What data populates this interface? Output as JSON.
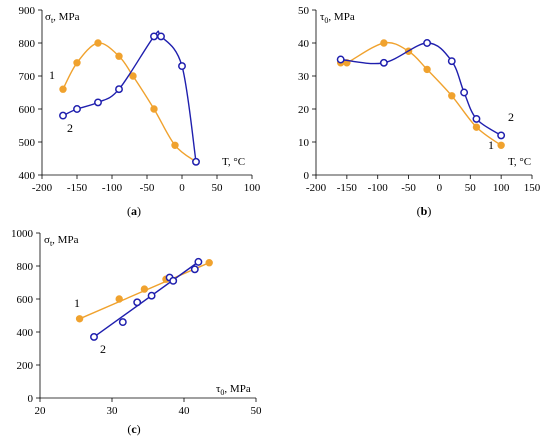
{
  "colors": {
    "series1": "#F0A22E",
    "series2": "#1F1FAE"
  },
  "chart_data": [
    {
      "type": "scatter",
      "panel": "a",
      "panel_label": "(a)",
      "ylabel_main": "σ",
      "ylabel_sub": "t",
      "ylabel_unit": ", MPa",
      "xlabel": "T, °C",
      "xlim": [
        -200,
        100
      ],
      "ylim": [
        400,
        900
      ],
      "xticks": [
        -200,
        -150,
        -100,
        -50,
        0,
        50,
        100
      ],
      "yticks": [
        400,
        500,
        600,
        700,
        800,
        900
      ],
      "series": [
        {
          "name": "1",
          "marker": "filled",
          "x": [
            -170,
            -150,
            -120,
            -90,
            -70,
            -40,
            -10,
            20
          ],
          "y": [
            660,
            740,
            800,
            760,
            700,
            600,
            490,
            440
          ]
        },
        {
          "name": "2",
          "marker": "open",
          "x": [
            -170,
            -150,
            -120,
            -90,
            -40,
            -30,
            0,
            20
          ],
          "y": [
            580,
            600,
            620,
            660,
            820,
            820,
            730,
            440
          ]
        }
      ]
    },
    {
      "type": "scatter",
      "panel": "b",
      "panel_label": "(b)",
      "ylabel_main": "τ",
      "ylabel_sub": "0",
      "ylabel_unit": ", MPa",
      "xlabel": "T, °C",
      "xlim": [
        -200,
        150
      ],
      "ylim": [
        0,
        50
      ],
      "xticks": [
        -200,
        -150,
        -100,
        -50,
        0,
        50,
        100,
        150
      ],
      "yticks": [
        0,
        10,
        20,
        30,
        40,
        50
      ],
      "series": [
        {
          "name": "1",
          "marker": "filled",
          "x": [
            -160,
            -150,
            -90,
            -50,
            -20,
            20,
            60,
            100
          ],
          "y": [
            34,
            34,
            40,
            37.5,
            32,
            24,
            14.5,
            9
          ]
        },
        {
          "name": "2",
          "marker": "open",
          "x": [
            -160,
            -90,
            -20,
            20,
            40,
            60,
            100
          ],
          "y": [
            35,
            34,
            40,
            34.5,
            25,
            17,
            12
          ]
        }
      ]
    },
    {
      "type": "scatter",
      "panel": "c",
      "panel_label": "(c)",
      "ylabel_main": "σ",
      "ylabel_sub": "t",
      "ylabel_unit": ", MPa",
      "xlabel_main": "τ",
      "xlabel_sub": "0",
      "xlabel_unit": ", MPa",
      "xlim": [
        20,
        50
      ],
      "ylim": [
        0,
        1000
      ],
      "xticks": [
        20,
        30,
        40,
        50
      ],
      "yticks": [
        0,
        200,
        400,
        600,
        800,
        1000
      ],
      "series": [
        {
          "name": "1",
          "marker": "filled",
          "x": [
            25.5,
            31,
            34.5,
            37.5,
            43.5
          ],
          "y": [
            480,
            600,
            660,
            720,
            820
          ]
        },
        {
          "name": "2",
          "marker": "open",
          "x": [
            27.5,
            31.5,
            33.5,
            35.5,
            38,
            38.5,
            41.5,
            42
          ],
          "y": [
            370,
            460,
            580,
            620,
            730,
            710,
            780,
            825
          ]
        }
      ]
    }
  ]
}
